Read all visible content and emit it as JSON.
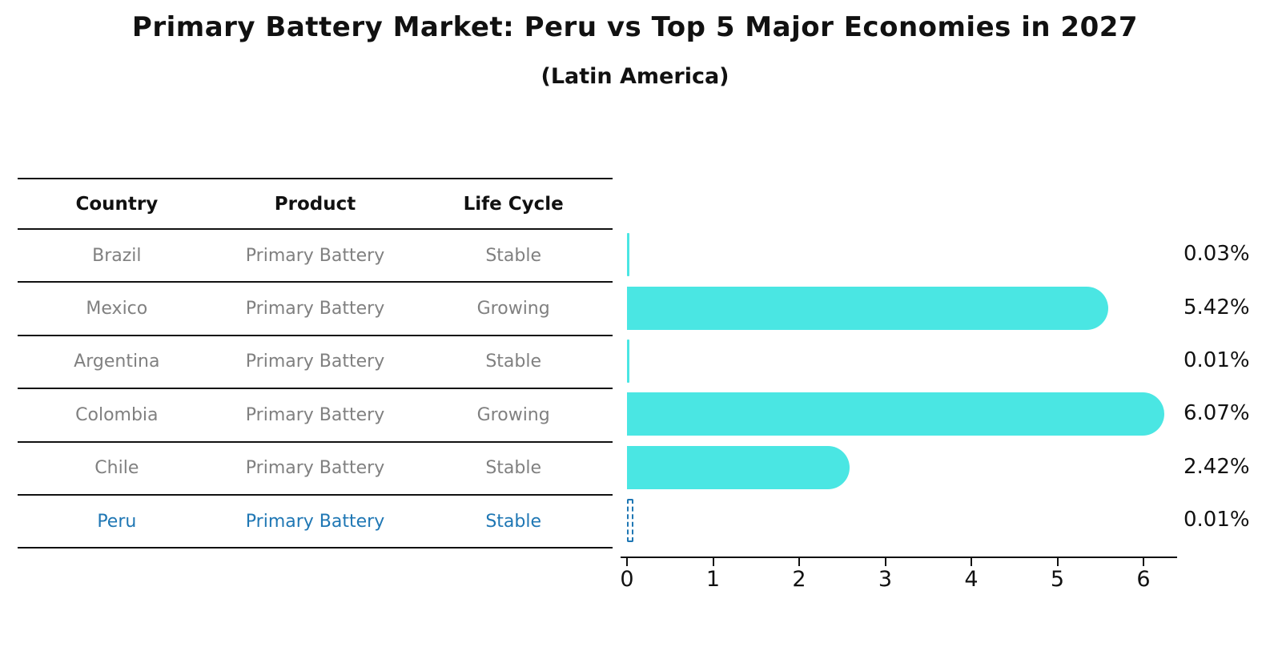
{
  "title": "Primary Battery Market: Peru vs Top 5 Major Economies in 2027",
  "subtitle": "(Latin America)",
  "colors": {
    "bar": "#4AE6E3",
    "highlight": "#1f77b4",
    "row_text": "#808080",
    "header_text": "#111111",
    "axis": "#111111"
  },
  "table": {
    "headers": [
      "Country",
      "Product",
      "Life Cycle"
    ],
    "rows": [
      {
        "country": "Brazil",
        "product": "Primary Battery",
        "life_cycle": "Stable",
        "highlighted": false
      },
      {
        "country": "Mexico",
        "product": "Primary Battery",
        "life_cycle": "Growing",
        "highlighted": false
      },
      {
        "country": "Argentina",
        "product": "Primary Battery",
        "life_cycle": "Stable",
        "highlighted": false
      },
      {
        "country": "Colombia",
        "product": "Primary Battery",
        "life_cycle": "Growing",
        "highlighted": false
      },
      {
        "country": "Chile",
        "product": "Primary Battery",
        "life_cycle": "Stable",
        "highlighted": false
      },
      {
        "country": "Peru",
        "product": "Primary Battery",
        "life_cycle": "Stable",
        "highlighted": true
      }
    ]
  },
  "chart_data": {
    "type": "bar",
    "orientation": "horizontal",
    "title": "Primary Battery Market: Peru vs Top 5 Major Economies in 2027",
    "subtitle": "(Latin America)",
    "categories": [
      "Brazil",
      "Mexico",
      "Argentina",
      "Colombia",
      "Chile",
      "Peru"
    ],
    "values": [
      0.03,
      5.42,
      0.01,
      6.07,
      2.42,
      0.01
    ],
    "value_labels": [
      "0.03%",
      "5.42%",
      "0.01%",
      "6.07%",
      "2.42%",
      "0.01%"
    ],
    "highlight_category": "Peru",
    "highlight_style": "dashed-outline",
    "x_ticks": [
      "0",
      "1",
      "2",
      "3",
      "4",
      "5",
      "6"
    ],
    "xlim": [
      0,
      6.4
    ],
    "grid": false,
    "legend": false,
    "bar_color": "#4AE6E3"
  }
}
